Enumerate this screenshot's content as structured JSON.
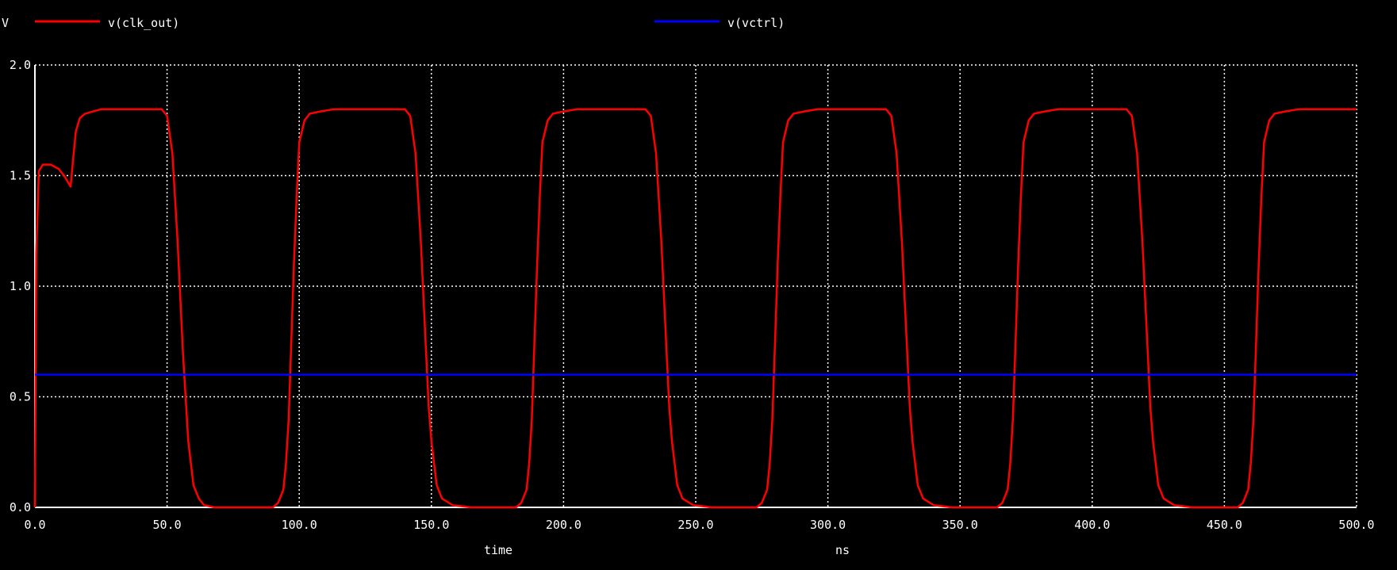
{
  "chart_data": {
    "type": "line",
    "ylabel": "V",
    "xlabel": "time",
    "xunit": "ns",
    "xlim": [
      0,
      500
    ],
    "ylim": [
      0,
      2
    ],
    "xticks": [
      "0.0",
      "50.0",
      "100.0",
      "150.0",
      "200.0",
      "250.0",
      "300.0",
      "350.0",
      "400.0",
      "450.0",
      "500.0"
    ],
    "yticks": [
      "0.0",
      "0.5",
      "1.0",
      "1.5",
      "2.0"
    ],
    "grid": true,
    "legend": "top",
    "series": [
      {
        "name": "v(clk_out)",
        "color": "#ff0000",
        "x": [
          0,
          0.5,
          1.5,
          3,
          6,
          9,
          11,
          12.5,
          13.5,
          14.5,
          15.5,
          17,
          19,
          22,
          25,
          30,
          48,
          50,
          52,
          54,
          56,
          58,
          60,
          62,
          64,
          68,
          75,
          90,
          92,
          94,
          95,
          96,
          97,
          98,
          99,
          100,
          102,
          104,
          108,
          113,
          140,
          142,
          144,
          146,
          148,
          149,
          150,
          152,
          154,
          158,
          165,
          182,
          184,
          186,
          187,
          188,
          189,
          190,
          191,
          192,
          194,
          196,
          200,
          205,
          231,
          233,
          235,
          237,
          239,
          240,
          241,
          243,
          245,
          249,
          256,
          273,
          275,
          277,
          278,
          279,
          280,
          281,
          282,
          283,
          285,
          287,
          291,
          296,
          322,
          324,
          326,
          328,
          330,
          331,
          332,
          334,
          336,
          340,
          347,
          364,
          366,
          368,
          369,
          370,
          371,
          372,
          373,
          374,
          376,
          378,
          382,
          387,
          413,
          415,
          417,
          419,
          421,
          422,
          423,
          425,
          427,
          431,
          438,
          455,
          457,
          459,
          460,
          461,
          462,
          463,
          464,
          465,
          467,
          469,
          473,
          478,
          500
        ],
        "y": [
          0.0,
          1.15,
          1.52,
          1.55,
          1.55,
          1.53,
          1.5,
          1.47,
          1.45,
          1.58,
          1.7,
          1.76,
          1.78,
          1.79,
          1.8,
          1.8,
          1.8,
          1.77,
          1.6,
          1.2,
          0.7,
          0.3,
          0.1,
          0.04,
          0.01,
          0.0,
          0.0,
          0.0,
          0.02,
          0.08,
          0.2,
          0.4,
          0.75,
          1.1,
          1.4,
          1.65,
          1.75,
          1.78,
          1.79,
          1.8,
          1.8,
          1.77,
          1.6,
          1.2,
          0.7,
          0.45,
          0.3,
          0.1,
          0.04,
          0.01,
          0.0,
          0.0,
          0.02,
          0.08,
          0.2,
          0.4,
          0.75,
          1.1,
          1.4,
          1.65,
          1.75,
          1.78,
          1.79,
          1.8,
          1.8,
          1.77,
          1.6,
          1.2,
          0.7,
          0.45,
          0.3,
          0.1,
          0.04,
          0.01,
          0.0,
          0.0,
          0.02,
          0.08,
          0.2,
          0.4,
          0.75,
          1.1,
          1.4,
          1.65,
          1.75,
          1.78,
          1.79,
          1.8,
          1.8,
          1.77,
          1.6,
          1.2,
          0.7,
          0.45,
          0.3,
          0.1,
          0.04,
          0.01,
          0.0,
          0.0,
          0.02,
          0.08,
          0.2,
          0.4,
          0.75,
          1.1,
          1.4,
          1.65,
          1.75,
          1.78,
          1.79,
          1.8,
          1.8,
          1.77,
          1.6,
          1.2,
          0.7,
          0.45,
          0.3,
          0.1,
          0.04,
          0.01,
          0.0,
          0.0,
          0.02,
          0.08,
          0.2,
          0.4,
          0.75,
          1.1,
          1.4,
          1.65,
          1.75,
          1.78,
          1.79,
          1.8,
          1.8
        ]
      },
      {
        "name": "v(vctrl)",
        "color": "#0000ff",
        "x": [
          0,
          500
        ],
        "y": [
          0.6,
          0.6
        ]
      }
    ]
  }
}
